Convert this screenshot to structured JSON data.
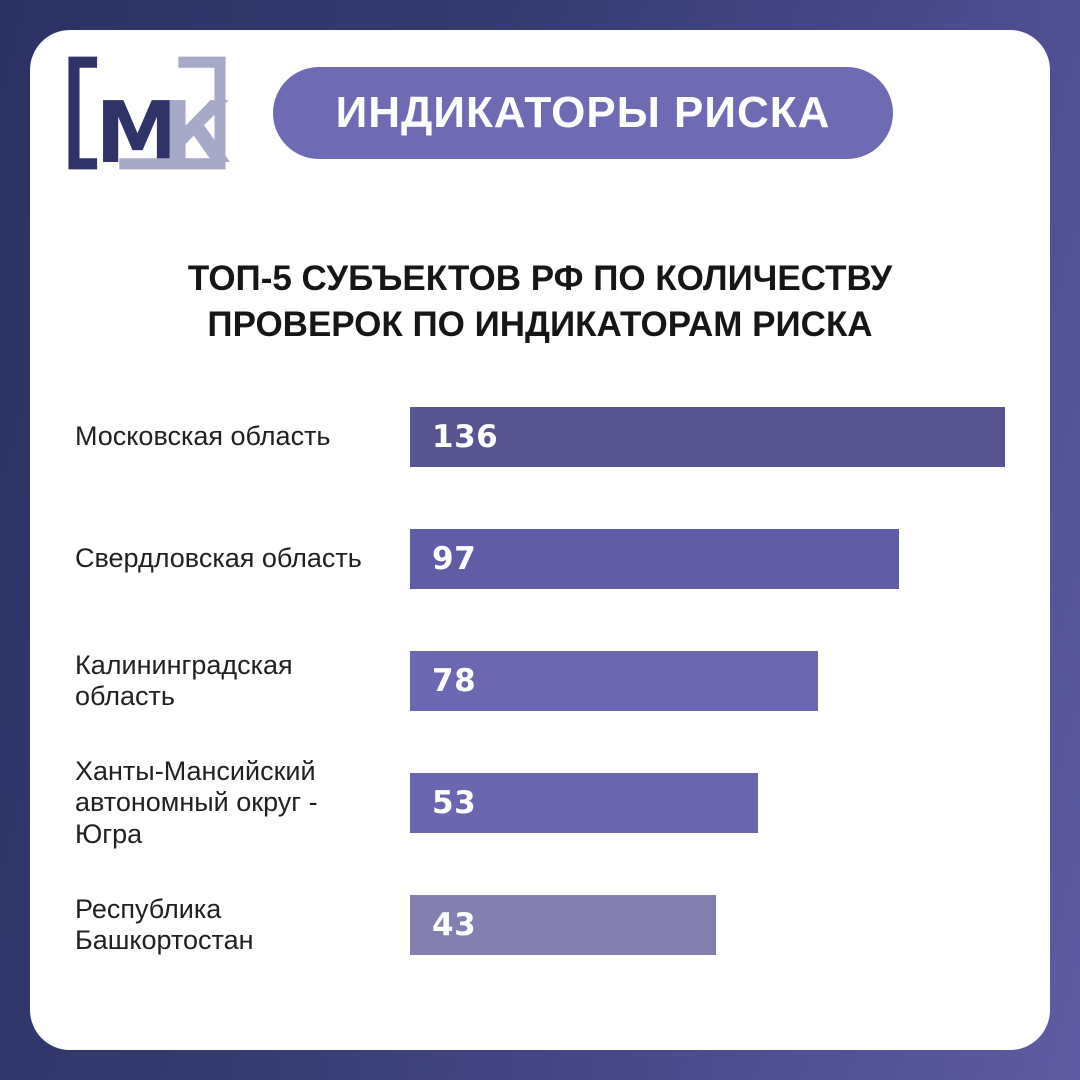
{
  "page": {
    "bg_gradient_start": "#2c3163",
    "bg_gradient_end": "#5e5ba2",
    "card_bg": "#ffffff"
  },
  "header": {
    "logo": {
      "letter_m": "М",
      "letter_k": "К",
      "m_color": "#2f3367",
      "k_color": "#a7a9c8"
    },
    "badge": {
      "label": "ИНДИКАТОРЫ РИСКА",
      "bg": "#6e6bb4",
      "text_color": "#ffffff"
    }
  },
  "title": {
    "line1": "ТОП-5 СУБЪЕКТОВ РФ ПО КОЛИЧЕСТВУ",
    "line2": "ПРОВЕРОК ПО ИНДИКАТОРАМ РИСКА"
  },
  "chart_data": {
    "type": "bar",
    "orientation": "horizontal",
    "title": "ТОП-5 СУБЪЕКТОВ РФ ПО КОЛИЧЕСТВУ ПРОВЕРОК ПО ИНДИКАТОРАМ РИСКА",
    "categories": [
      "Московская область",
      "Свердловская область",
      "Калининградская область",
      "Ханты-Мансийский автономный округ - Югра",
      "Республика Башкортостан"
    ],
    "values": [
      136,
      97,
      78,
      53,
      43
    ],
    "bar_colors": [
      "#57548f",
      "#605da6",
      "#6b68b1",
      "#6a67b0",
      "#8380af"
    ],
    "bar_width_pct": [
      100,
      82.2,
      68.6,
      58.5,
      51.4
    ],
    "value_label_color": "#ffffff",
    "value_label_position": "inside-left",
    "xlim": [
      0,
      136
    ],
    "grid": false,
    "legend": false
  }
}
